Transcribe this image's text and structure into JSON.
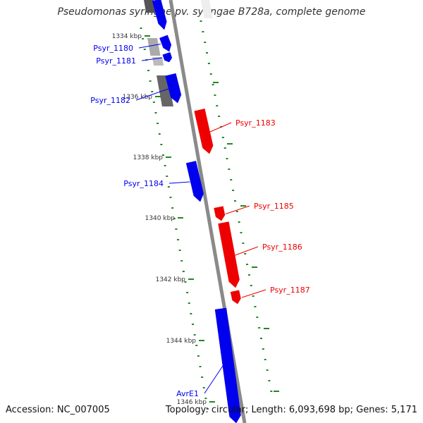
{
  "title": "Pseudomonas syringae pv. syringae B728a, complete genome",
  "footer": {
    "accession": "Accession: NC_007005",
    "topology": "Topology: circular; Length: 6,093,698 bp; Genes: 5,171"
  },
  "colors": {
    "forward": "#0000ee",
    "reverse": "#ee0000",
    "other": "#888888",
    "backbone": "#8a8a8a",
    "ticks": "#228822"
  },
  "ticks": [
    "1334 kbp",
    "1336 kbp",
    "1338 kbp",
    "1340 kbp",
    "1342 kbp",
    "1344 kbp",
    "1346 kbp"
  ],
  "genes": [
    {
      "name": "Psyr_1180",
      "strand": "forward"
    },
    {
      "name": "Psyr_1181",
      "strand": "forward"
    },
    {
      "name": "Psyr_1182",
      "strand": "forward"
    },
    {
      "name": "Psyr_1183",
      "strand": "reverse"
    },
    {
      "name": "Psyr_1184",
      "strand": "forward"
    },
    {
      "name": "Psyr_1185",
      "strand": "reverse"
    },
    {
      "name": "Psyr_1186",
      "strand": "reverse"
    },
    {
      "name": "Psyr_1187",
      "strand": "reverse"
    },
    {
      "name": "AvrE1",
      "strand": "forward"
    }
  ]
}
